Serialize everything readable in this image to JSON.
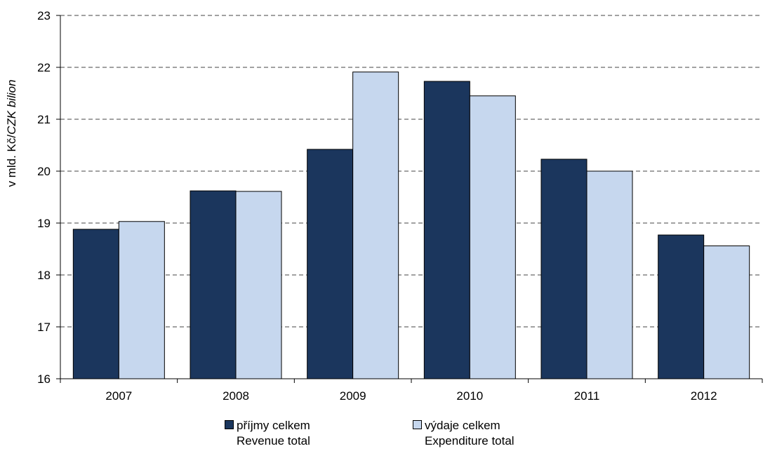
{
  "chart_data": {
    "type": "bar",
    "categories": [
      "2007",
      "2008",
      "2009",
      "2010",
      "2011",
      "2012"
    ],
    "series": [
      {
        "name": "příjmy celkem",
        "name_en": "Revenue total",
        "color": "#1b365d",
        "values": [
          18.88,
          19.62,
          20.42,
          21.73,
          20.23,
          18.77
        ]
      },
      {
        "name": "výdaje celkem",
        "name_en": "Expenditure total",
        "color": "#c6d7ee",
        "values": [
          19.03,
          19.61,
          21.91,
          21.45,
          20.0,
          18.56
        ]
      }
    ],
    "ylabel_main": "v mld. Kč/",
    "ylabel_italic": "CZK bilion",
    "ylim": [
      16,
      23
    ],
    "yticks": [
      "16",
      "17",
      "18",
      "19",
      "20",
      "21",
      "22",
      "23"
    ],
    "grid": true,
    "legend_position": "bottom"
  }
}
